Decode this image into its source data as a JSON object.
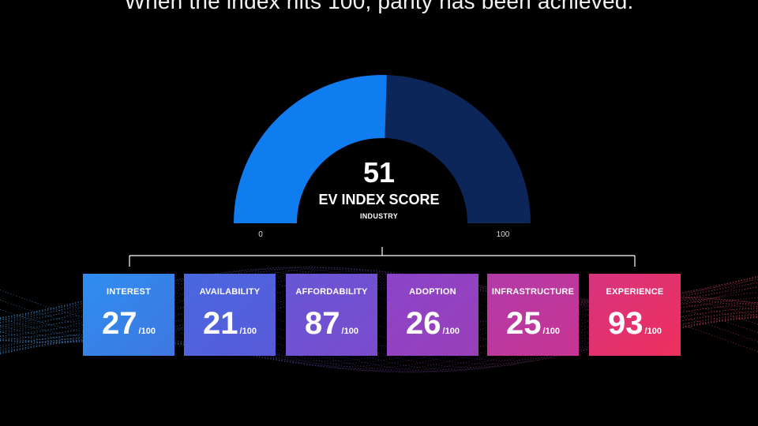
{
  "headline": "When the index hits 100, parity has been achieved.",
  "gauge": {
    "score": "51",
    "label": "EV INDEX SCORE",
    "sublabel": "INDUSTRY",
    "min_label": "0",
    "max_label": "100",
    "value_fraction": 0.51,
    "colors": {
      "filled": "#0f7cf0",
      "remaining": "#0d2659",
      "bracket": "#ffffff"
    }
  },
  "categories": [
    {
      "title": "INTEREST",
      "score": "27",
      "out_of": "/100",
      "color_start": "#2f8ef0",
      "color_end": "#3e77e0"
    },
    {
      "title": "AVAILABILITY",
      "score": "21",
      "out_of": "/100",
      "color_start": "#4868e0",
      "color_end": "#5a5ad8"
    },
    {
      "title": "AFFORDABILITY",
      "score": "87",
      "out_of": "/100",
      "color_start": "#6657d6",
      "color_end": "#7b4bcc"
    },
    {
      "title": "ADOPTION",
      "score": "26",
      "out_of": "/100",
      "color_start": "#8a45c8",
      "color_end": "#9a3fba"
    },
    {
      "title": "INFRASTRUCTURE",
      "score": "25",
      "out_of": "/100",
      "color_start": "#b23aa8",
      "color_end": "#c73592"
    },
    {
      "title": "EXPERIENCE",
      "score": "93",
      "out_of": "/100",
      "color_start": "#d6347f",
      "color_end": "#ee2f5c"
    }
  ]
}
